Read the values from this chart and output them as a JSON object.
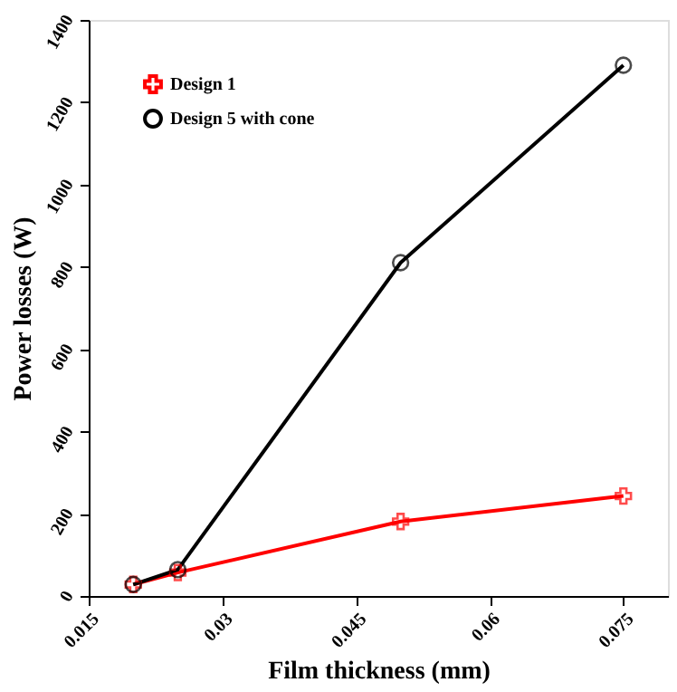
{
  "chart_data": {
    "type": "line",
    "xlabel": "Film thickness (mm)",
    "ylabel": "Power losses (W)",
    "x": [
      0.02,
      0.025,
      0.05,
      0.075
    ],
    "xlim": [
      0.015,
      0.08
    ],
    "xticks": [
      0.015,
      0.03,
      0.045,
      0.06,
      0.075
    ],
    "ylim": [
      0,
      1400
    ],
    "yticks": [
      0,
      200,
      400,
      600,
      800,
      1000,
      1200,
      1400
    ],
    "series": [
      {
        "name": "Design 1",
        "color": "#ff0000",
        "marker": "cross",
        "values": [
          28,
          57,
          181,
          243
        ]
      },
      {
        "name": "Design 5 with cone",
        "color": "#000000",
        "marker": "circle",
        "values": [
          28,
          64,
          810,
          1290
        ]
      }
    ],
    "legend": "top left",
    "grid": false,
    "line_style": "solid"
  }
}
